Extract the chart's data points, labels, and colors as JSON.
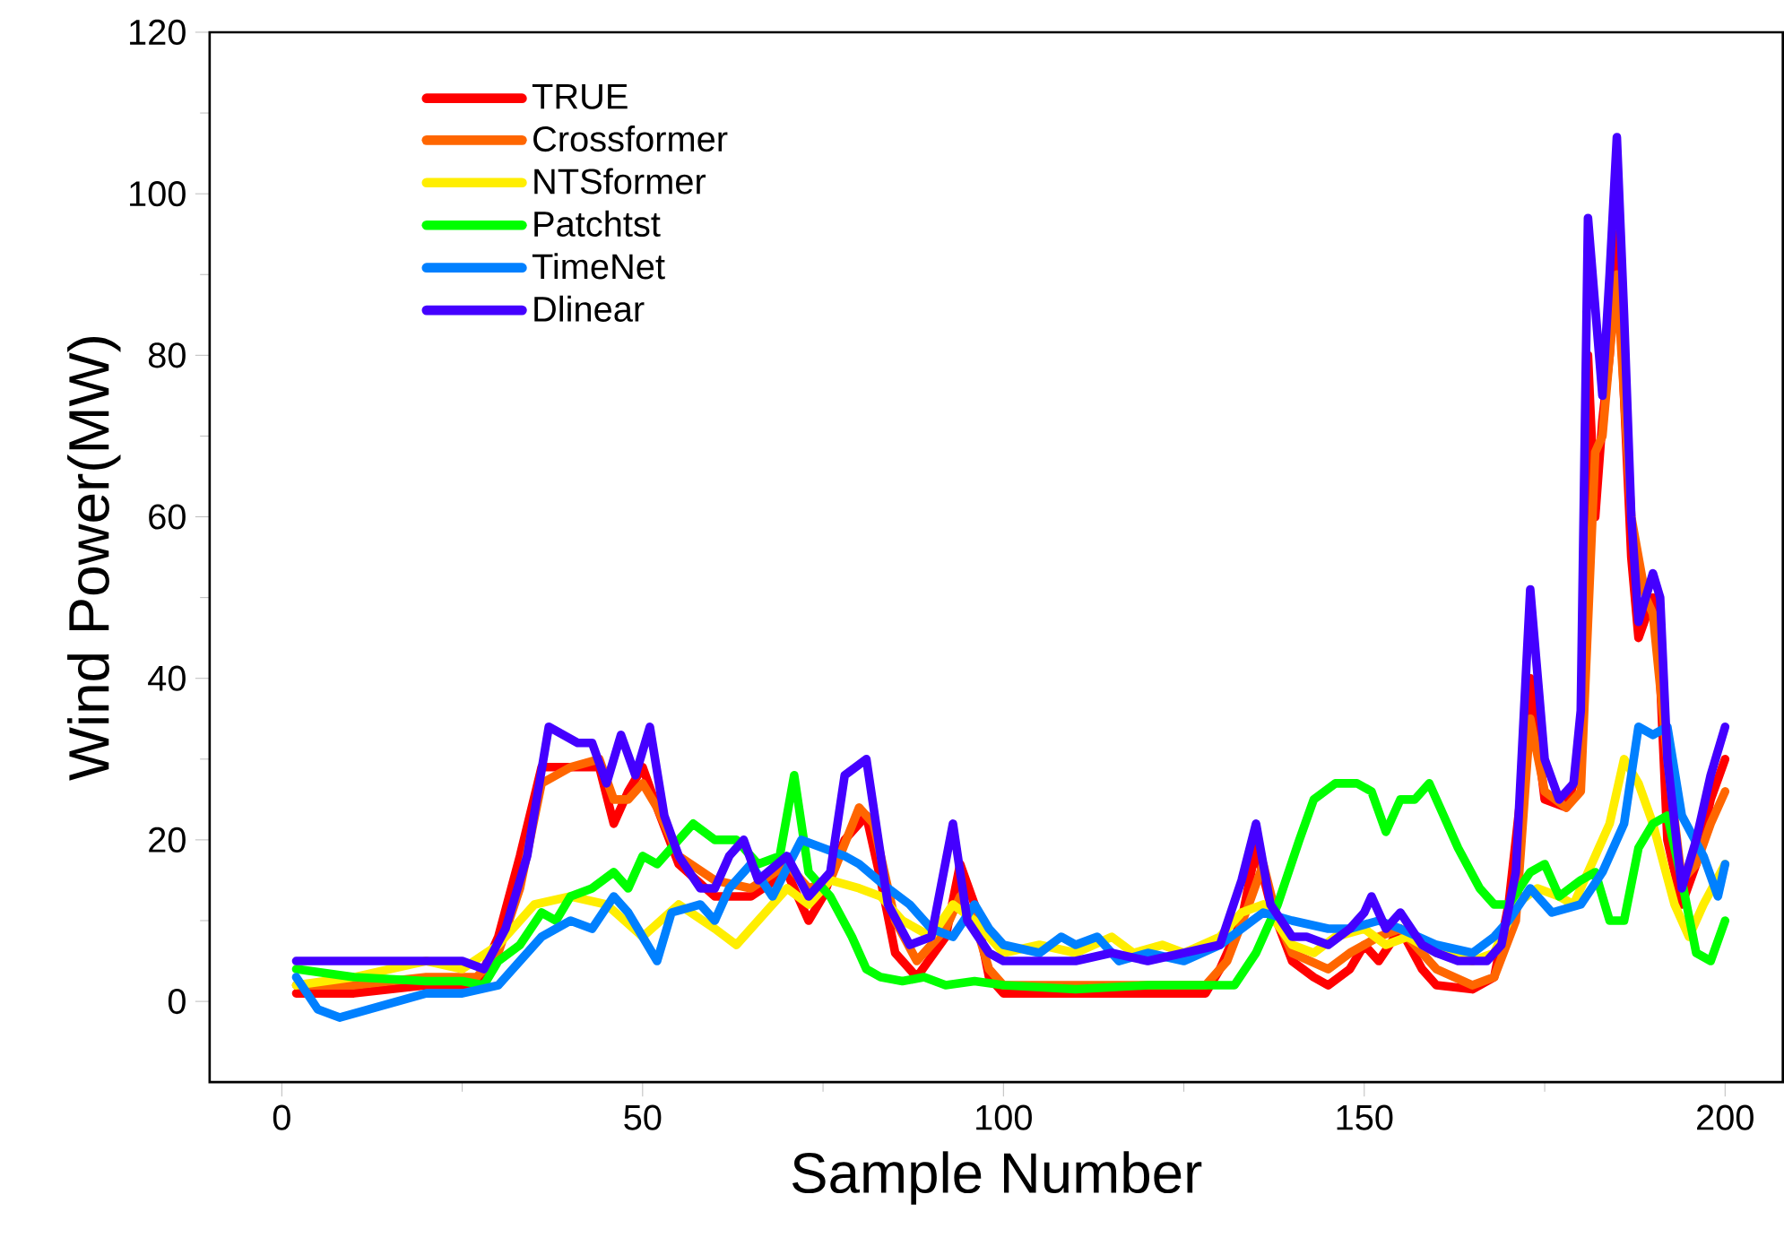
{
  "chart_data": {
    "type": "line",
    "xlabel": "Sample Number",
    "ylabel": "Wind Power(MW)",
    "xlim": [
      -10,
      208
    ],
    "ylim": [
      -10,
      120
    ],
    "xticks": [
      0,
      50,
      100,
      150,
      200
    ],
    "yticks": [
      0,
      20,
      40,
      60,
      80,
      100,
      120
    ],
    "legend": "top left",
    "grid": false,
    "marker": "none",
    "line_style": "solid",
    "series": [
      {
        "name": "TRUE",
        "color": "#ff0000",
        "x": [
          2,
          10,
          20,
          27,
          30,
          33,
          36,
          40,
          44,
          46,
          48,
          50,
          52,
          55,
          60,
          65,
          70,
          73,
          75,
          78,
          81,
          83,
          85,
          88,
          92,
          94,
          96,
          98,
          100,
          110,
          120,
          128,
          130,
          133,
          135,
          137,
          140,
          143,
          145,
          148,
          150,
          152,
          155,
          158,
          160,
          165,
          168,
          170,
          172,
          173,
          175,
          178,
          180,
          181,
          182,
          183,
          184,
          185,
          186,
          187,
          188,
          190,
          191,
          192,
          194,
          196,
          198,
          200
        ],
        "values": [
          1,
          1,
          2,
          2,
          8,
          18,
          29,
          29,
          29,
          22,
          26,
          29,
          24,
          17,
          13,
          13,
          16,
          10,
          13,
          20,
          23,
          15,
          6,
          3,
          8,
          17,
          12,
          3,
          1,
          1,
          1,
          1,
          4,
          10,
          19,
          12,
          5,
          3,
          2,
          4,
          7,
          5,
          9,
          4,
          2,
          1.5,
          3,
          12,
          28,
          40,
          25,
          24,
          30,
          80,
          60,
          72,
          80,
          95,
          75,
          55,
          45,
          50,
          40,
          20,
          12,
          17,
          25,
          30
        ]
      },
      {
        "name": "Crossformer",
        "color": "#ff6600",
        "x": [
          2,
          10,
          20,
          27,
          30,
          33,
          36,
          40,
          44,
          46,
          48,
          50,
          52,
          55,
          60,
          65,
          70,
          73,
          76,
          80,
          82,
          85,
          88,
          92,
          94,
          96,
          98,
          100,
          110,
          120,
          128,
          131,
          134,
          136,
          138,
          140,
          145,
          148,
          152,
          155,
          158,
          160,
          165,
          168,
          171,
          173,
          175,
          178,
          180,
          182,
          183,
          185,
          187,
          189,
          190,
          192,
          194,
          196,
          198,
          200
        ],
        "values": [
          2,
          2,
          3,
          3,
          6,
          14,
          27,
          29,
          30,
          25,
          25,
          27,
          24,
          18,
          15,
          14,
          17,
          14,
          15,
          24,
          22,
          10,
          5,
          9,
          13,
          10,
          4,
          2,
          2,
          2,
          2,
          5,
          12,
          17,
          10,
          6,
          4,
          6,
          8,
          9,
          6,
          4,
          2,
          3,
          10,
          35,
          26,
          24,
          26,
          68,
          70,
          90,
          60,
          50,
          48,
          30,
          15,
          17,
          22,
          26
        ]
      },
      {
        "name": "NTSformer",
        "color": "#ffee00",
        "x": [
          2,
          10,
          20,
          25,
          30,
          35,
          40,
          45,
          50,
          55,
          60,
          63,
          66,
          70,
          73,
          76,
          80,
          83,
          86,
          90,
          93,
          96,
          100,
          105,
          110,
          115,
          118,
          122,
          125,
          130,
          133,
          136,
          140,
          143,
          146,
          150,
          153,
          156,
          160,
          165,
          168,
          171,
          174,
          177,
          179,
          182,
          184,
          186,
          188,
          190,
          193,
          195,
          197,
          200
        ],
        "values": [
          2,
          3,
          5,
          4,
          7,
          12,
          13,
          12,
          8,
          12,
          9,
          7,
          10,
          14,
          12,
          15,
          14,
          13,
          10,
          8,
          12,
          10,
          6,
          7,
          6,
          8,
          6,
          7,
          6,
          8,
          11,
          12,
          7,
          6,
          8,
          9,
          7,
          8,
          6,
          5,
          6,
          12,
          14,
          13,
          12,
          18,
          22,
          30,
          27,
          22,
          12,
          8,
          12,
          17
        ]
      },
      {
        "name": "Patchtst",
        "color": "#00ff00",
        "x": [
          2,
          10,
          20,
          25,
          28,
          30,
          33,
          36,
          38,
          40,
          43,
          46,
          48,
          50,
          52,
          55,
          57,
          60,
          63,
          66,
          69,
          71,
          73,
          76,
          79,
          81,
          83,
          86,
          89,
          92,
          96,
          100,
          110,
          120,
          125,
          128,
          132,
          135,
          138,
          141,
          143,
          146,
          149,
          151,
          153,
          155,
          157,
          159,
          161,
          163,
          166,
          168,
          170,
          173,
          175,
          177,
          180,
          182,
          184,
          186,
          188,
          190,
          192,
          194,
          196,
          198,
          200
        ],
        "values": [
          4,
          3,
          2.5,
          2.5,
          2,
          5,
          7,
          11,
          10,
          13,
          14,
          16,
          14,
          18,
          17,
          20,
          22,
          20,
          20,
          17,
          18,
          28,
          16,
          13,
          8,
          4,
          3,
          2.5,
          3,
          2,
          2.5,
          2,
          1.5,
          2,
          2,
          2,
          2,
          6,
          12,
          20,
          25,
          27,
          27,
          26,
          21,
          25,
          25,
          27,
          23,
          19,
          14,
          12,
          12,
          16,
          17,
          13,
          15,
          16,
          10,
          10,
          19,
          22,
          23,
          15,
          6,
          5,
          10
        ]
      },
      {
        "name": "TimeNet",
        "color": "#0080ff",
        "x": [
          2,
          5,
          8,
          12,
          16,
          20,
          25,
          30,
          33,
          36,
          40,
          43,
          46,
          48,
          50,
          52,
          54,
          58,
          60,
          62,
          65,
          68,
          72,
          75,
          78,
          80,
          84,
          87,
          90,
          93,
          96,
          98,
          100,
          105,
          108,
          110,
          113,
          116,
          120,
          125,
          130,
          133,
          136,
          140,
          145,
          148,
          152,
          155,
          160,
          165,
          168,
          170,
          173,
          176,
          180,
          183,
          186,
          188,
          190,
          192,
          194,
          197,
          199,
          200
        ],
        "values": [
          3,
          -1,
          -2,
          -1,
          0,
          1,
          1,
          2,
          5,
          8,
          10,
          9,
          13,
          11,
          8,
          5,
          11,
          12,
          10,
          14,
          17,
          13,
          20,
          19,
          18,
          17,
          14,
          12,
          9,
          8,
          12,
          9,
          7,
          6,
          8,
          7,
          8,
          5,
          6,
          5,
          7,
          9,
          11,
          10,
          9,
          9,
          10,
          9,
          7,
          6,
          8,
          10,
          14,
          11,
          12,
          16,
          22,
          34,
          33,
          34,
          23,
          18,
          13,
          17
        ]
      },
      {
        "name": "Dlinear",
        "color": "#4400ff",
        "x": [
          2,
          6,
          10,
          15,
          20,
          25,
          28,
          31,
          34,
          37,
          39,
          41,
          43,
          45,
          47,
          49,
          51,
          53,
          55,
          58,
          60,
          62,
          64,
          66,
          70,
          73,
          76,
          78,
          81,
          84,
          87,
          90,
          93,
          95,
          98,
          100,
          105,
          110,
          115,
          120,
          125,
          130,
          133,
          135,
          137,
          140,
          142,
          145,
          148,
          150,
          151,
          153,
          155,
          158,
          160,
          163,
          167,
          169,
          171,
          173,
          175,
          177,
          179,
          180,
          181,
          183,
          184,
          185,
          186,
          187,
          188,
          190,
          191,
          192,
          194,
          196,
          198,
          200
        ],
        "values": [
          5,
          5,
          5,
          5,
          5,
          5,
          4,
          9,
          18,
          34,
          33,
          32,
          32,
          27,
          33,
          28,
          34,
          23,
          18,
          14,
          14,
          18,
          20,
          15,
          18,
          13,
          16,
          28,
          30,
          12,
          7,
          8,
          22,
          10,
          6,
          5,
          5,
          5,
          6,
          5,
          6,
          7,
          15,
          22,
          12,
          8,
          8,
          7,
          9,
          11,
          13,
          9,
          11,
          7,
          6,
          5,
          5,
          7,
          16,
          51,
          30,
          25,
          27,
          36,
          97,
          75,
          90,
          107,
          85,
          60,
          47,
          53,
          50,
          30,
          14,
          20,
          28,
          34
        ]
      }
    ]
  }
}
